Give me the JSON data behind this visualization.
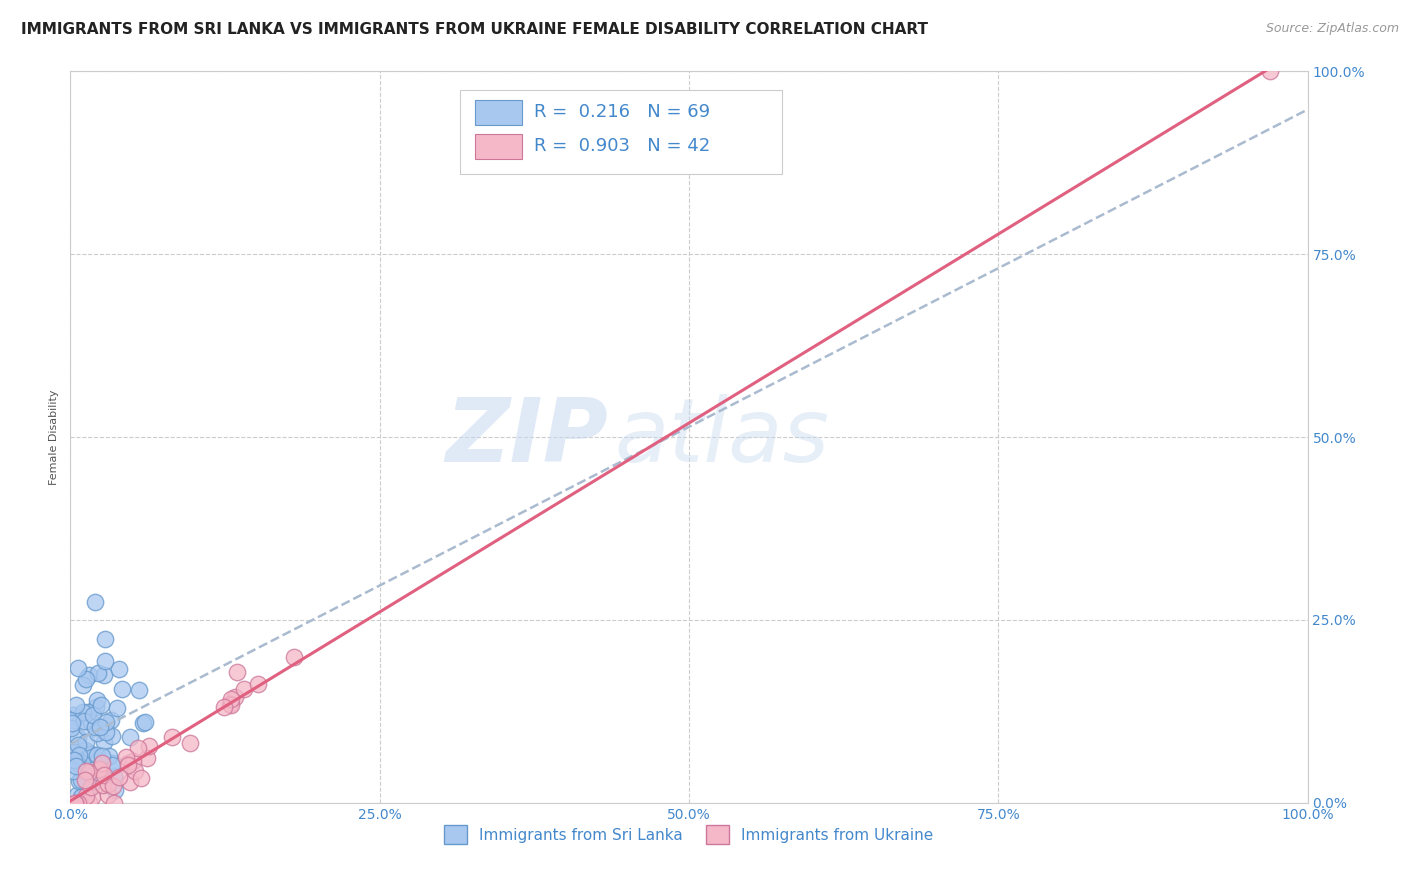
{
  "title": "IMMIGRANTS FROM SRI LANKA VS IMMIGRANTS FROM UKRAINE FEMALE DISABILITY CORRELATION CHART",
  "source": "Source: ZipAtlas.com",
  "ylabel": "Female Disability",
  "watermark_zip": "ZIP",
  "watermark_atlas": "atlas",
  "background_color": "#ffffff",
  "plot_bg_color": "#ffffff",
  "grid_color": "#cccccc",
  "sri_lanka": {
    "label": "Immigrants from Sri Lanka",
    "color": "#a8c8f0",
    "edge_color": "#6699cc",
    "R": 0.216,
    "N": 69,
    "line_color": "#aabbd0",
    "line_style": "--"
  },
  "ukraine": {
    "label": "Immigrants from Ukraine",
    "color": "#f5b8c8",
    "edge_color": "#cc7799",
    "R": 0.903,
    "N": 42,
    "line_color": "#e06080",
    "line_style": "-"
  },
  "xaxis": {
    "min": 0,
    "max": 100,
    "ticks": [
      0,
      25,
      50,
      75,
      100
    ],
    "tick_labels": [
      "0.0%",
      "25.0%",
      "50.0%",
      "75.0%",
      "100.0%"
    ]
  },
  "yaxis": {
    "min": 0,
    "max": 100,
    "ticks": [
      0,
      25,
      50,
      75,
      100
    ],
    "tick_labels": [
      "0.0%",
      "25.0%",
      "50.0%",
      "75.0%",
      "100.0%"
    ]
  },
  "tick_color": "#4488cc",
  "title_fontsize": 11,
  "source_fontsize": 9,
  "axis_label_fontsize": 8,
  "tick_fontsize": 10,
  "legend_fontsize": 13
}
